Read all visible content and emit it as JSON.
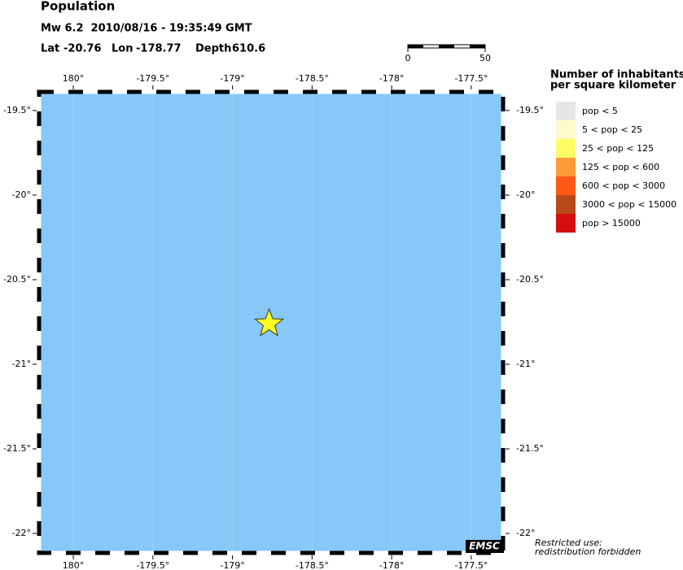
{
  "header": {
    "title": "Population",
    "event": "Mw 6.2  2010/08/16 - 19:35:49 GMT"
  },
  "epicenter": {
    "lat_label": "Lat",
    "lat": -20.76,
    "lon_label": "Lon",
    "lon": -178.77,
    "depth_label": "Depth",
    "depth": 610.6
  },
  "map": {
    "xlim": [
      -180.215,
      -177.3
    ],
    "ylim": [
      -22.115,
      -19.39
    ],
    "water_color": "#87c8f9",
    "xticks": [
      {
        "value": -180,
        "label": "180°"
      },
      {
        "value": -179.5,
        "label": "-179.5°"
      },
      {
        "value": -179,
        "label": "-179°"
      },
      {
        "value": -178.5,
        "label": "-178.5°"
      },
      {
        "value": -178,
        "label": "-178°"
      },
      {
        "value": -177.5,
        "label": "-177.5°"
      }
    ],
    "yticks": [
      {
        "value": -19.5,
        "label": "-19.5°"
      },
      {
        "value": -20,
        "label": "-20°"
      },
      {
        "value": -20.5,
        "label": "-20.5°"
      },
      {
        "value": -21,
        "label": "-21°"
      },
      {
        "value": -21.5,
        "label": "-21.5°"
      },
      {
        "value": -22,
        "label": "-22°"
      }
    ]
  },
  "scale_bar": {
    "ticks": [
      0,
      50
    ]
  },
  "legend": {
    "title": [
      "Number of inhabitants",
      "per square kilometer"
    ],
    "items": [
      {
        "label": "pop < 5",
        "color": "#e6e6e6"
      },
      {
        "label": "5 < pop < 25",
        "color": "#fdfbcd"
      },
      {
        "label": "25 < pop < 125",
        "color": "#fdfc66"
      },
      {
        "label": "125 < pop < 600",
        "color": "#fd9a3a"
      },
      {
        "label": "600 < pop < 3000",
        "color": "#fd5a19"
      },
      {
        "label": "3000 < pop < 15000",
        "color": "#b84a1a"
      },
      {
        "label": "pop > 15000",
        "color": "#d40f0f"
      }
    ]
  },
  "footer": {
    "logo": "EMSC",
    "notice": [
      "Restricted use:",
      "redistribution forbidden"
    ]
  }
}
